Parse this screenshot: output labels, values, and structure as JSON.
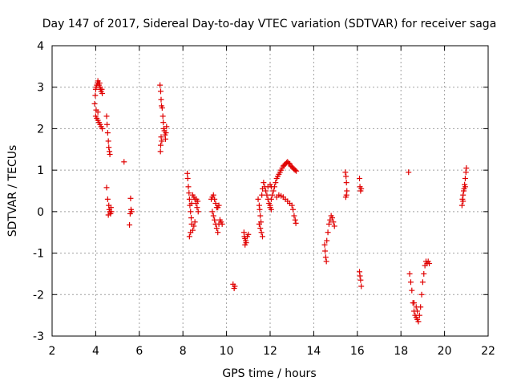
{
  "chart_data": {
    "type": "scatter",
    "title": "Day 147 of 2017, Sidereal Day-to-day VTEC variation (SDTVAR) for receiver saga",
    "xlabel": "GPS time / hours",
    "ylabel": "SDTVAR / TECUs",
    "xlim": [
      2,
      22
    ],
    "ylim": [
      -3,
      4
    ],
    "xticks": [
      "2",
      "4",
      "6",
      "8",
      "10",
      "12",
      "14",
      "16",
      "18",
      "20",
      "22"
    ],
    "yticks": [
      "-3",
      "-2",
      "-1",
      "0",
      "1",
      "2",
      "3",
      "4"
    ],
    "grid": true,
    "marker": "+",
    "color": "#e00000",
    "series": [
      {
        "name": "SDTVAR",
        "points": [
          [
            3.95,
            2.6
          ],
          [
            3.98,
            2.8
          ],
          [
            4.0,
            2.95
          ],
          [
            4.02,
            3.0
          ],
          [
            4.05,
            3.05
          ],
          [
            4.08,
            3.1
          ],
          [
            4.1,
            3.15
          ],
          [
            4.13,
            3.1
          ],
          [
            4.15,
            3.05
          ],
          [
            4.18,
            3.1
          ],
          [
            4.2,
            3.0
          ],
          [
            4.22,
            2.95
          ],
          [
            4.25,
            2.9
          ],
          [
            4.28,
            2.95
          ],
          [
            4.3,
            2.85
          ],
          [
            4.0,
            2.3
          ],
          [
            4.05,
            2.25
          ],
          [
            4.1,
            2.2
          ],
          [
            4.15,
            2.15
          ],
          [
            4.2,
            2.1
          ],
          [
            4.25,
            2.05
          ],
          [
            4.3,
            2.0
          ],
          [
            4.1,
            2.4
          ],
          [
            4.02,
            2.45
          ],
          [
            4.5,
            2.3
          ],
          [
            4.52,
            2.1
          ],
          [
            4.55,
            1.9
          ],
          [
            4.58,
            1.7
          ],
          [
            4.6,
            1.55
          ],
          [
            4.63,
            1.45
          ],
          [
            4.65,
            1.38
          ],
          [
            4.5,
            0.58
          ],
          [
            4.55,
            0.3
          ],
          [
            4.6,
            0.15
          ],
          [
            4.62,
            0.05
          ],
          [
            4.65,
            0.0
          ],
          [
            4.68,
            -0.05
          ],
          [
            4.7,
            0.1
          ],
          [
            4.72,
            0.0
          ],
          [
            4.58,
            -0.08
          ],
          [
            5.3,
            1.2
          ],
          [
            5.6,
            0.32
          ],
          [
            5.62,
            0.05
          ],
          [
            5.65,
            0.0
          ],
          [
            5.58,
            -0.05
          ],
          [
            5.55,
            -0.32
          ],
          [
            6.95,
            3.05
          ],
          [
            6.98,
            2.9
          ],
          [
            7.0,
            2.7
          ],
          [
            7.02,
            2.55
          ],
          [
            7.05,
            2.5
          ],
          [
            7.08,
            2.3
          ],
          [
            7.1,
            2.15
          ],
          [
            7.12,
            2.0
          ],
          [
            7.15,
            1.95
          ],
          [
            7.18,
            1.85
          ],
          [
            7.2,
            1.75
          ],
          [
            7.22,
            1.9
          ],
          [
            7.25,
            2.05
          ],
          [
            7.0,
            1.8
          ],
          [
            6.98,
            1.6
          ],
          [
            6.97,
            1.45
          ],
          [
            7.03,
            1.7
          ],
          [
            8.2,
            0.92
          ],
          [
            8.22,
            0.8
          ],
          [
            8.25,
            0.6
          ],
          [
            8.28,
            0.45
          ],
          [
            8.3,
            0.3
          ],
          [
            8.32,
            0.15
          ],
          [
            8.35,
            0.0
          ],
          [
            8.38,
            -0.15
          ],
          [
            8.4,
            -0.3
          ],
          [
            8.35,
            -0.5
          ],
          [
            8.3,
            -0.6
          ],
          [
            8.45,
            0.4
          ],
          [
            8.5,
            0.35
          ],
          [
            8.55,
            0.3
          ],
          [
            8.6,
            0.2
          ],
          [
            8.65,
            0.1
          ],
          [
            8.7,
            0.0
          ],
          [
            8.5,
            -0.35
          ],
          [
            8.55,
            -0.25
          ],
          [
            8.45,
            -0.45
          ],
          [
            8.62,
            0.3
          ],
          [
            8.68,
            0.25
          ],
          [
            8.4,
            0.2
          ],
          [
            9.3,
            0.3
          ],
          [
            9.35,
            0.35
          ],
          [
            9.4,
            0.4
          ],
          [
            9.45,
            0.3
          ],
          [
            9.5,
            0.2
          ],
          [
            9.55,
            0.1
          ],
          [
            9.35,
            0.0
          ],
          [
            9.4,
            -0.1
          ],
          [
            9.45,
            -0.2
          ],
          [
            9.5,
            -0.3
          ],
          [
            9.55,
            -0.4
          ],
          [
            9.6,
            -0.5
          ],
          [
            9.65,
            -0.3
          ],
          [
            9.7,
            -0.2
          ],
          [
            9.75,
            -0.25
          ],
          [
            9.8,
            -0.3
          ],
          [
            9.6,
            0.1
          ],
          [
            9.65,
            0.15
          ],
          [
            10.3,
            -1.75
          ],
          [
            10.35,
            -1.85
          ],
          [
            10.38,
            -1.8
          ],
          [
            10.8,
            -0.5
          ],
          [
            10.82,
            -0.6
          ],
          [
            10.85,
            -0.65
          ],
          [
            10.88,
            -0.7
          ],
          [
            10.9,
            -0.75
          ],
          [
            10.85,
            -0.8
          ],
          [
            10.95,
            -0.6
          ],
          [
            11.0,
            -0.55
          ],
          [
            11.45,
            0.3
          ],
          [
            11.5,
            0.15
          ],
          [
            11.52,
            0.05
          ],
          [
            11.55,
            -0.1
          ],
          [
            11.5,
            -0.3
          ],
          [
            11.55,
            -0.4
          ],
          [
            11.6,
            -0.5
          ],
          [
            11.65,
            -0.6
          ],
          [
            11.58,
            -0.25
          ],
          [
            11.62,
            0.4
          ],
          [
            11.65,
            0.55
          ],
          [
            11.7,
            0.7
          ],
          [
            11.75,
            0.6
          ],
          [
            11.8,
            0.5
          ],
          [
            11.85,
            0.4
          ],
          [
            11.9,
            0.3
          ],
          [
            11.95,
            0.2
          ],
          [
            12.0,
            0.15
          ],
          [
            12.05,
            0.3
          ],
          [
            12.1,
            0.4
          ],
          [
            12.15,
            0.5
          ],
          [
            12.2,
            0.6
          ],
          [
            12.25,
            0.7
          ],
          [
            12.3,
            0.8
          ],
          [
            12.35,
            0.85
          ],
          [
            12.4,
            0.9
          ],
          [
            12.45,
            0.95
          ],
          [
            12.5,
            1.0
          ],
          [
            12.55,
            1.05
          ],
          [
            12.6,
            1.1
          ],
          [
            12.65,
            1.12
          ],
          [
            12.7,
            1.15
          ],
          [
            12.75,
            1.18
          ],
          [
            12.8,
            1.2
          ],
          [
            12.85,
            1.17
          ],
          [
            12.9,
            1.15
          ],
          [
            12.95,
            1.1
          ],
          [
            13.0,
            1.08
          ],
          [
            13.05,
            1.05
          ],
          [
            13.1,
            1.02
          ],
          [
            13.15,
            1.0
          ],
          [
            13.2,
            0.98
          ],
          [
            11.9,
            0.6
          ],
          [
            12.0,
            0.65
          ],
          [
            12.05,
            0.6
          ],
          [
            12.0,
            0.1
          ],
          [
            12.05,
            0.05
          ],
          [
            12.3,
            0.35
          ],
          [
            12.4,
            0.4
          ],
          [
            12.5,
            0.38
          ],
          [
            12.6,
            0.35
          ],
          [
            12.7,
            0.3
          ],
          [
            12.8,
            0.25
          ],
          [
            12.9,
            0.2
          ],
          [
            13.0,
            0.15
          ],
          [
            13.05,
            0.05
          ],
          [
            13.1,
            -0.1
          ],
          [
            13.15,
            -0.2
          ],
          [
            13.18,
            -0.28
          ],
          [
            14.5,
            -0.8
          ],
          [
            14.52,
            -0.95
          ],
          [
            14.55,
            -1.1
          ],
          [
            14.58,
            -1.2
          ],
          [
            14.6,
            -0.7
          ],
          [
            14.65,
            -0.5
          ],
          [
            14.7,
            -0.3
          ],
          [
            14.75,
            -0.2
          ],
          [
            14.8,
            -0.1
          ],
          [
            14.85,
            -0.15
          ],
          [
            14.9,
            -0.25
          ],
          [
            14.95,
            -0.35
          ],
          [
            15.45,
            0.95
          ],
          [
            15.48,
            0.85
          ],
          [
            15.5,
            0.7
          ],
          [
            15.52,
            0.5
          ],
          [
            15.5,
            0.4
          ],
          [
            15.47,
            0.35
          ],
          [
            16.1,
            0.8
          ],
          [
            16.12,
            0.6
          ],
          [
            16.15,
            0.5
          ],
          [
            16.18,
            0.55
          ],
          [
            16.1,
            -1.45
          ],
          [
            16.12,
            -1.55
          ],
          [
            16.15,
            -1.65
          ],
          [
            16.18,
            -1.8
          ],
          [
            18.35,
            0.95
          ],
          [
            18.4,
            -1.5
          ],
          [
            18.45,
            -1.7
          ],
          [
            18.5,
            -1.9
          ],
          [
            18.55,
            -2.2
          ],
          [
            18.6,
            -2.4
          ],
          [
            18.65,
            -2.5
          ],
          [
            18.7,
            -2.55
          ],
          [
            18.75,
            -2.6
          ],
          [
            18.8,
            -2.65
          ],
          [
            18.7,
            -2.3
          ],
          [
            18.85,
            -2.5
          ],
          [
            18.9,
            -2.3
          ],
          [
            18.95,
            -2.0
          ],
          [
            19.0,
            -1.7
          ],
          [
            19.05,
            -1.5
          ],
          [
            19.1,
            -1.3
          ],
          [
            19.15,
            -1.2
          ],
          [
            19.2,
            -1.25
          ],
          [
            19.25,
            -1.2
          ],
          [
            19.3,
            -1.25
          ],
          [
            18.6,
            -2.2
          ],
          [
            18.75,
            -2.4
          ],
          [
            20.8,
            0.15
          ],
          [
            20.82,
            0.3
          ],
          [
            20.85,
            0.4
          ],
          [
            20.88,
            0.5
          ],
          [
            20.9,
            0.55
          ],
          [
            20.92,
            0.65
          ],
          [
            20.95,
            0.8
          ],
          [
            20.98,
            0.95
          ],
          [
            21.0,
            1.05
          ],
          [
            20.95,
            0.6
          ],
          [
            20.85,
            0.25
          ]
        ]
      }
    ]
  }
}
